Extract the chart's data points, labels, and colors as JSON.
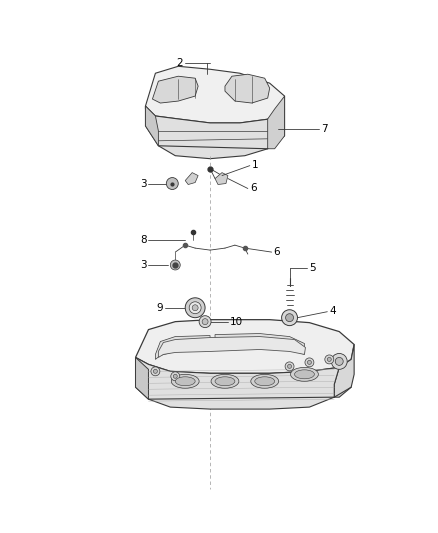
{
  "background_color": "#ffffff",
  "fig_width": 4.38,
  "fig_height": 5.33,
  "dpi": 100,
  "line_color": "#3a3a3a",
  "text_color": "#000000",
  "label_fontsize": 7.5
}
